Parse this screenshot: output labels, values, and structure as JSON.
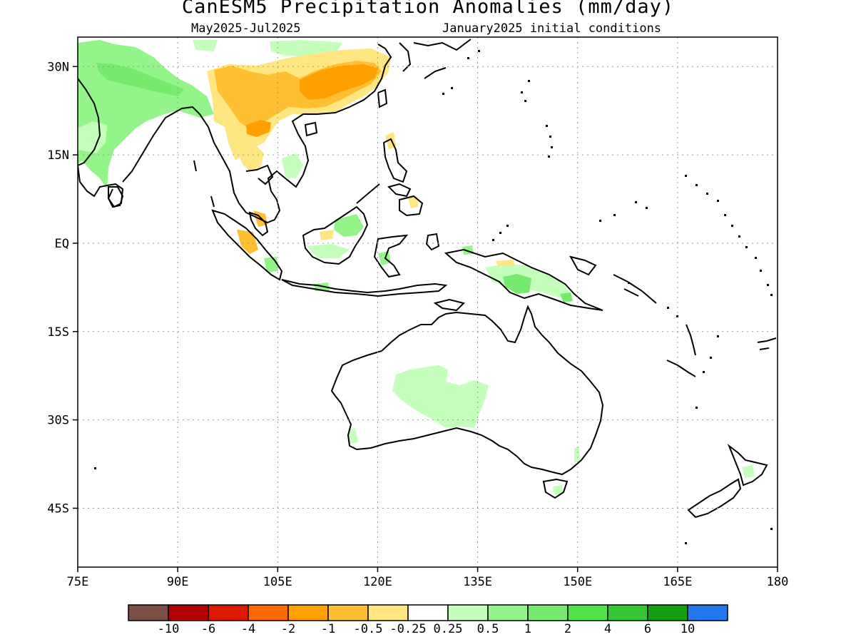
{
  "title": "CanESM5 Precipitation Anomalies (mm/day)",
  "subtitle_left": "May2025-Jul2025",
  "subtitle_right": "January2025 initial conditions",
  "axes": {
    "lon_labels": [
      "75E",
      "90E",
      "105E",
      "120E",
      "135E",
      "150E",
      "165E",
      "180"
    ],
    "lat_labels": [
      "30N",
      "15N",
      "EQ",
      "15S",
      "30S",
      "45S"
    ],
    "lon_range": [
      75,
      180
    ],
    "lat_range": [
      -55,
      35
    ],
    "grid": "dotted"
  },
  "colorbar": {
    "colors": [
      "#7b4f45",
      "#b30000",
      "#dd1a00",
      "#ff6a00",
      "#ffa000",
      "#ffbf33",
      "#ffe680",
      "#ffffff",
      "#c4ffbc",
      "#93f48a",
      "#76ea6c",
      "#4ee44a",
      "#33c833",
      "#10a010",
      "#2277ee"
    ],
    "labels": [
      "-10",
      "-6",
      "-4",
      "-2",
      "-1",
      "-0.5",
      "-0.25",
      "0.25",
      "0.5",
      "1",
      "2",
      "4",
      "6",
      "10"
    ]
  },
  "anomaly_colors": {
    "green_light": "#c4ffbc",
    "green_mid": "#93f48a",
    "green_strong": "#76ea6c",
    "yellow": "#ffe680",
    "orange_light": "#ffbf33",
    "orange": "#ffa000"
  }
}
